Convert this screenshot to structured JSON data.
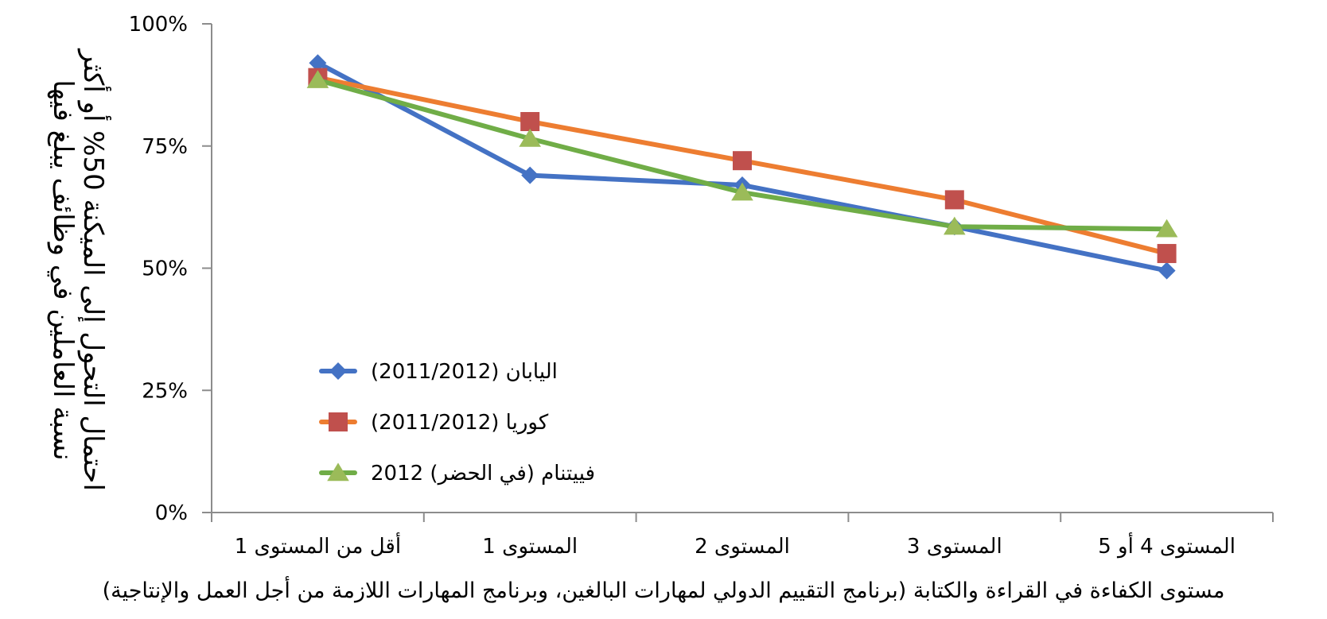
{
  "chart_data": {
    "type": "line",
    "categories": [
      "أقل من المستوى 1",
      "المستوى 1",
      "المستوى 2",
      "المستوى 3",
      "المستوى 4 أو 5"
    ],
    "series": [
      {
        "name": "اليابان (2011/2012)",
        "values": [
          92,
          69,
          67,
          58.5,
          49.5
        ],
        "color": "#4472C4",
        "marker": "diamond"
      },
      {
        "name": "كوريا (2011/2012)",
        "values": [
          89,
          80,
          72,
          64,
          53
        ],
        "color": "#ED7D31",
        "marker": "square",
        "marker_color": "#C0504D"
      },
      {
        "name": "فييتنام (في الحضر) 2012",
        "values": [
          88.5,
          76.5,
          65.5,
          58.5,
          58
        ],
        "color": "#70AD47",
        "marker": "triangle",
        "marker_color": "#9BBB59"
      }
    ],
    "yticks": [
      "100%",
      "75%",
      "50%",
      "25%",
      "0%"
    ],
    "ylim": [
      0,
      100
    ],
    "xlabel": "مستوى الكفاءة في القراءة والكتابة (برنامج التقييم الدولي لمهارات البالغين، وبرنامج المهارات اللازمة من أجل العمل والإنتاجية)",
    "ylabel_lines": [
      "نسبة العاملين في وظائف يبلغ فيها",
      "احتمال التحول إلى الميكنة 50% أو أكثر"
    ],
    "grid": false,
    "legend_position": "bottom-left inside plot"
  }
}
